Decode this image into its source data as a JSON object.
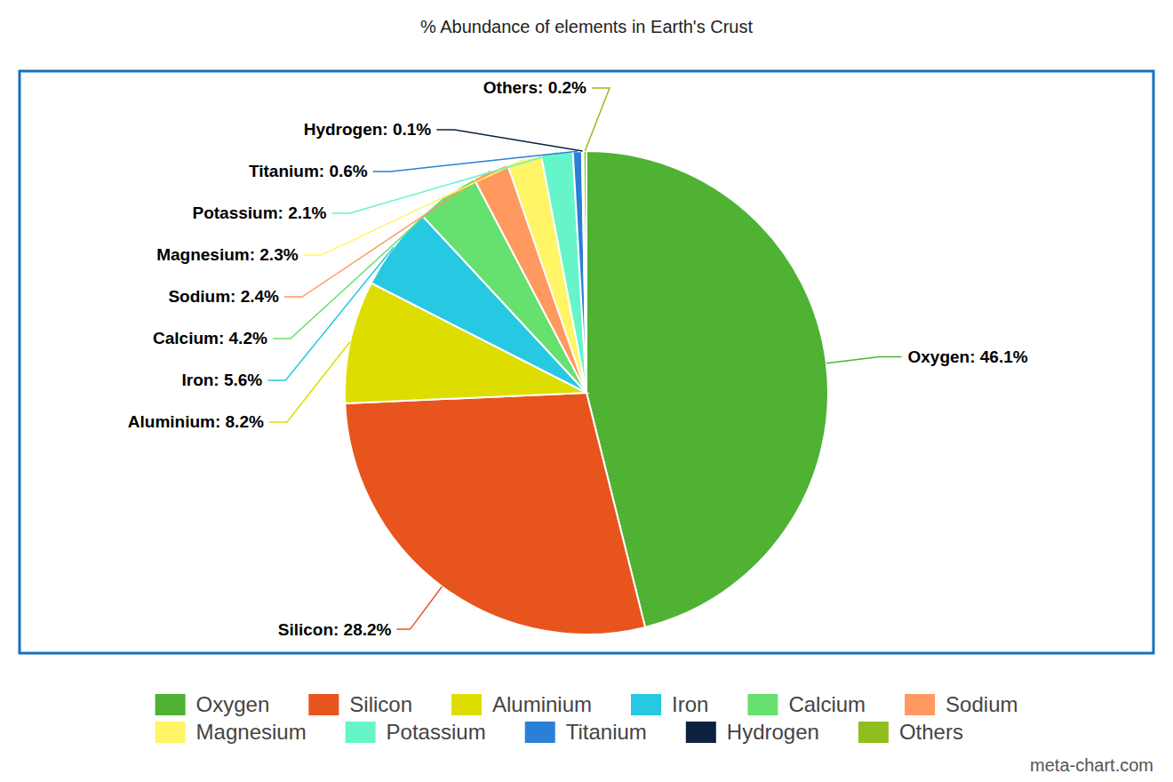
{
  "chart_data": {
    "type": "pie",
    "title": "% Abundance of elements in Earth's Crust",
    "categories": [
      "Oxygen",
      "Silicon",
      "Aluminium",
      "Iron",
      "Calcium",
      "Sodium",
      "Magnesium",
      "Potassium",
      "Titanium",
      "Hydrogen",
      "Others"
    ],
    "values": [
      46.1,
      28.2,
      8.2,
      5.6,
      4.2,
      2.4,
      2.3,
      2.1,
      0.6,
      0.1,
      0.2
    ],
    "value_labels": [
      "Oxygen: 46.1%",
      "Silicon: 28.2%",
      "Aluminium: 8.2%",
      "Iron: 5.6%",
      "Calcium: 4.2%",
      "Sodium: 2.4%",
      "Magnesium: 2.3%",
      "Potassium: 2.1%",
      "Titanium: 0.6%",
      "Hydrogen: 0.1%",
      "Others: 0.2%"
    ],
    "colors": [
      "#4fb233",
      "#e8541d",
      "#dddd00",
      "#26c9e1",
      "#66e06e",
      "#ff9960",
      "#fff566",
      "#66f5c8",
      "#2a7fd8",
      "#0d2240",
      "#8fbe1e"
    ],
    "data_labels": true,
    "legend": "bottom",
    "annotations": [
      "meta-chart.com"
    ]
  }
}
